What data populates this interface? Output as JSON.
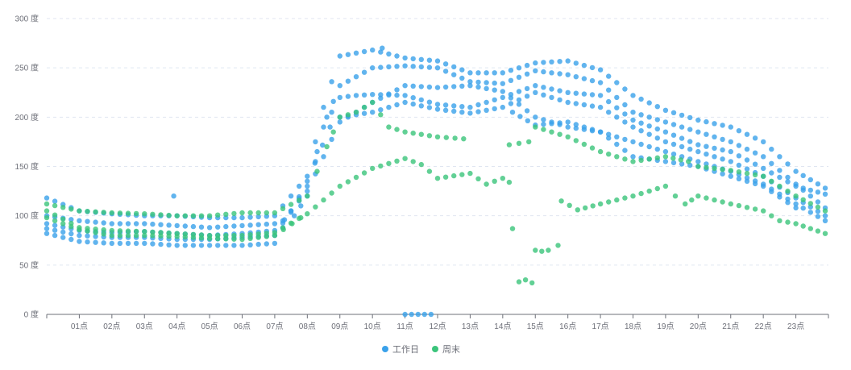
{
  "chart_data": {
    "type": "scatter",
    "title": "",
    "xlabel": "",
    "ylabel": "",
    "x_ticks": [
      "01点",
      "02点",
      "03点",
      "04点",
      "05点",
      "06点",
      "07点",
      "08点",
      "09点",
      "10点",
      "11点",
      "12点",
      "13点",
      "14点",
      "15点",
      "16点",
      "17点",
      "18点",
      "19点",
      "20点",
      "21点",
      "22点",
      "23点"
    ],
    "y_ticks": [
      "0 度",
      "50 度",
      "100 度",
      "150 度",
      "200 度",
      "250 度",
      "300 度"
    ],
    "xlim": [
      0,
      24
    ],
    "ylim": [
      0,
      300
    ],
    "grid": "horizontal dashed",
    "legend_position": "bottom-center",
    "series": [
      {
        "name": "工作日",
        "color": "#3aa1ea",
        "curves": [
          [
            [
              0,
              100
            ],
            [
              1,
              95
            ],
            [
              2,
              92
            ],
            [
              3,
              92
            ],
            [
              4,
              90
            ],
            [
              5,
              88
            ],
            [
              6,
              90
            ],
            [
              7,
              92
            ],
            [
              7.6,
              100
            ],
            [
              8,
              120
            ],
            [
              8.5,
              190
            ],
            [
              9,
              220
            ],
            [
              9.5,
              222
            ],
            [
              10,
              223
            ],
            [
              11,
              222
            ],
            [
              12,
              213
            ],
            [
              13,
              210
            ],
            [
              14,
              220
            ],
            [
              15,
              232
            ],
            [
              16,
              225
            ],
            [
              17,
              222
            ],
            [
              18,
              197
            ],
            [
              19,
              185
            ],
            [
              20,
              172
            ],
            [
              21,
              165
            ],
            [
              22,
              148
            ],
            [
              23,
              130
            ],
            [
              23.9,
              122
            ]
          ],
          [
            [
              0,
              118
            ],
            [
              1,
              105
            ],
            [
              2,
              102
            ],
            [
              3,
              100
            ],
            [
              4,
              100
            ],
            [
              5,
              98
            ],
            [
              6,
              98
            ],
            [
              7,
              100
            ],
            [
              8,
              140
            ],
            [
              8.5,
              210
            ],
            [
              9,
              262
            ],
            [
              10,
              268
            ],
            [
              11,
              260
            ],
            [
              12,
              257
            ],
            [
              13,
              245
            ],
            [
              14,
              245
            ],
            [
              15,
              255
            ],
            [
              16,
              257
            ],
            [
              17,
              248
            ],
            [
              18,
              222
            ],
            [
              19,
              207
            ],
            [
              20,
              197
            ],
            [
              21,
              190
            ],
            [
              22,
              175
            ],
            [
              23,
              145
            ],
            [
              23.9,
              128
            ]
          ],
          [
            [
              0,
              87
            ],
            [
              1,
              80
            ],
            [
              2,
              78
            ],
            [
              3,
              78
            ],
            [
              4,
              76
            ],
            [
              5,
              76
            ],
            [
              6,
              78
            ],
            [
              7,
              80
            ],
            [
              8,
              130
            ],
            [
              8.6,
              200
            ],
            [
              9,
              232
            ],
            [
              10,
              250
            ],
            [
              11,
              252
            ],
            [
              12,
              250
            ],
            [
              13,
              236
            ],
            [
              14,
              234
            ],
            [
              15,
              247
            ],
            [
              16,
              243
            ],
            [
              17,
              235
            ],
            [
              18,
              205
            ],
            [
              19,
              195
            ],
            [
              20,
              185
            ],
            [
              21,
              175
            ],
            [
              22,
              160
            ],
            [
              23,
              132
            ],
            [
              23.9,
              108
            ]
          ],
          [
            [
              0,
              82
            ],
            [
              1,
              74
            ],
            [
              2,
              72
            ],
            [
              3,
              72
            ],
            [
              4,
              70
            ],
            [
              5,
              70
            ],
            [
              6,
              70
            ],
            [
              7,
              72
            ],
            [
              8,
              135
            ],
            [
              8.7,
              190
            ],
            [
              9,
              200
            ],
            [
              10,
              205
            ],
            [
              11,
              215
            ],
            [
              12,
              208
            ],
            [
              13,
              204
            ],
            [
              14,
              210
            ],
            [
              15,
              225
            ],
            [
              16,
              215
            ],
            [
              17,
              210
            ],
            [
              18,
              190
            ],
            [
              19,
              175
            ],
            [
              20,
              165
            ],
            [
              21,
              155
            ],
            [
              22,
              140
            ],
            [
              23,
              118
            ],
            [
              23.9,
              100
            ]
          ],
          [
            [
              0,
              92
            ],
            [
              1,
              85
            ],
            [
              2,
              83
            ],
            [
              3,
              84
            ],
            [
              4,
              82
            ],
            [
              5,
              80
            ],
            [
              6,
              82
            ],
            [
              7,
              85
            ],
            [
              8,
              125
            ],
            [
              9,
              195
            ],
            [
              10,
              215
            ],
            [
              11,
              232
            ],
            [
              12,
              230
            ],
            [
              13,
              232
            ],
            [
              14,
              226
            ],
            [
              15,
              200
            ],
            [
              16,
              190
            ],
            [
              17,
              185
            ],
            [
              18,
              175
            ],
            [
              19,
              165
            ],
            [
              20,
              155
            ],
            [
              21,
              145
            ],
            [
              22,
              132
            ],
            [
              23,
              112
            ],
            [
              23.9,
              95
            ]
          ],
          [
            [
              14.3,
              205
            ],
            [
              15,
              192
            ],
            [
              16,
              195
            ],
            [
              17,
              185
            ],
            [
              18,
              160
            ],
            [
              19,
              155
            ],
            [
              20,
              150
            ],
            [
              21,
              140
            ],
            [
              22,
              130
            ],
            [
              23,
              108
            ]
          ]
        ],
        "points": [
          [
            3.9,
            120
          ],
          [
            11,
            0
          ],
          [
            11.2,
            0
          ],
          [
            11.4,
            0
          ],
          [
            11.6,
            0
          ],
          [
            11.8,
            0
          ],
          [
            10.3,
            270
          ]
        ]
      },
      {
        "name": "周末",
        "color": "#3bc47b",
        "curves": [
          [
            [
              0,
              112
            ],
            [
              1,
              105
            ],
            [
              2,
              103
            ],
            [
              3,
              102
            ],
            [
              4,
              100
            ],
            [
              5,
              100
            ],
            [
              6,
              103
            ],
            [
              7,
              103
            ],
            [
              8,
              120
            ],
            [
              8.6,
              170
            ],
            [
              9,
              200
            ],
            [
              9.5,
              205
            ],
            [
              10,
              215
            ],
            [
              10.5,
              190
            ],
            [
              11,
              185
            ],
            [
              12,
              180
            ],
            [
              12.8,
              178
            ]
          ],
          [
            [
              0,
              105
            ],
            [
              1,
              88
            ],
            [
              2,
              85
            ],
            [
              3,
              84
            ],
            [
              4,
              82
            ],
            [
              5,
              80
            ],
            [
              6,
              80
            ],
            [
              7,
              83
            ],
            [
              8,
              102
            ],
            [
              9,
              130
            ],
            [
              10,
              148
            ],
            [
              11,
              158
            ],
            [
              11.5,
              152
            ],
            [
              12,
              138
            ],
            [
              13,
              143
            ],
            [
              13.5,
              132
            ],
            [
              14,
              138
            ],
            [
              14.2,
              134
            ]
          ],
          [
            [
              0,
              98
            ],
            [
              1,
              86
            ],
            [
              2,
              80
            ],
            [
              3,
              80
            ],
            [
              4,
              79
            ],
            [
              5,
              77
            ],
            [
              6,
              76
            ],
            [
              7,
              80
            ],
            [
              7.8,
              98
            ]
          ],
          [
            [
              14.2,
              172
            ],
            [
              14.8,
              175
            ],
            [
              15,
              190
            ],
            [
              16,
              180
            ],
            [
              17,
              165
            ],
            [
              18,
              155
            ],
            [
              19,
              160
            ],
            [
              19.7,
              155
            ],
            [
              20,
              150
            ],
            [
              21,
              146
            ],
            [
              22,
              140
            ],
            [
              22.5,
              130
            ],
            [
              23,
              120
            ],
            [
              23.9,
              105
            ]
          ],
          [
            [
              15.8,
              115
            ],
            [
              16.3,
              106
            ],
            [
              17,
              112
            ],
            [
              18,
              120
            ],
            [
              19,
              130
            ],
            [
              19.3,
              120
            ],
            [
              19.6,
              112
            ],
            [
              20,
              120
            ],
            [
              21,
              112
            ],
            [
              22,
              105
            ],
            [
              22.5,
              95
            ],
            [
              23,
              92
            ],
            [
              23.9,
              82
            ]
          ]
        ],
        "points": [
          [
            14.3,
            87
          ],
          [
            14.5,
            33
          ],
          [
            14.7,
            35
          ],
          [
            14.9,
            32
          ],
          [
            15,
            65
          ],
          [
            15.2,
            64
          ],
          [
            15.4,
            65
          ],
          [
            15.7,
            70
          ]
        ]
      }
    ]
  }
}
